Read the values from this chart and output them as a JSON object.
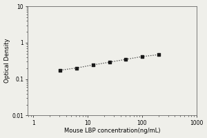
{
  "xlabel": "Mouse LBP concentration(ng/mL)",
  "ylabel": "Optical Density",
  "x_data": [
    3.125,
    6.25,
    12.5,
    25,
    50,
    100,
    200
  ],
  "y_data": [
    0.176,
    0.202,
    0.245,
    0.291,
    0.348,
    0.415,
    0.468
  ],
  "xlim_log": [
    -0.1,
    3.0
  ],
  "ylim_log": [
    -2,
    1
  ],
  "xticks": [
    1,
    10,
    100,
    1000
  ],
  "xtick_labels": [
    "1",
    "10",
    "100",
    "1000"
  ],
  "yticks": [
    0.01,
    0.1,
    1,
    10
  ],
  "ytick_labels": [
    "0.01",
    "0.1",
    "1",
    "10"
  ],
  "marker_color": "#1a1a1a",
  "line_color": "#333333",
  "background_color": "#efefea",
  "xlabel_fontsize": 6,
  "ylabel_fontsize": 6,
  "tick_fontsize": 5.5,
  "figsize": [
    3.0,
    2.0
  ],
  "dpi": 100
}
